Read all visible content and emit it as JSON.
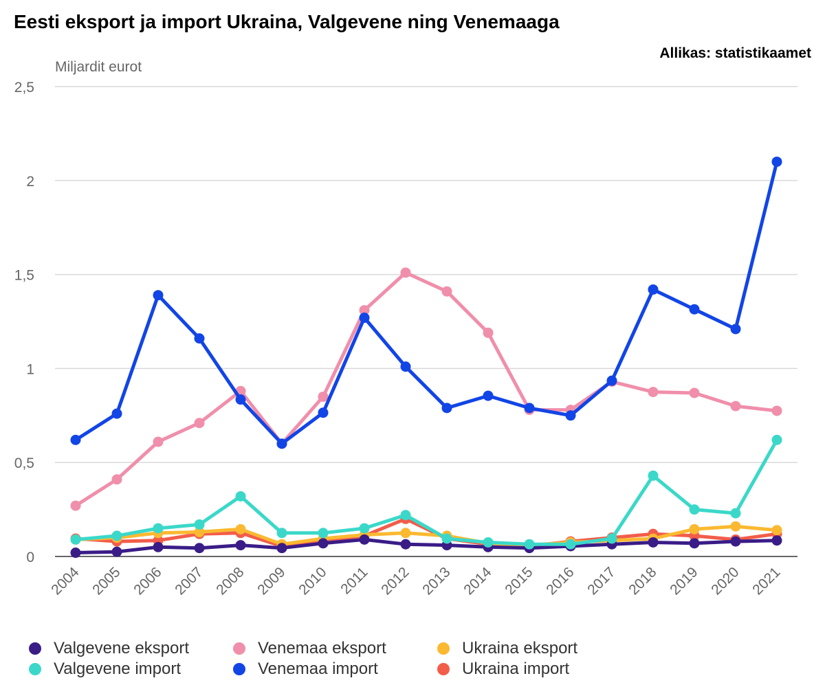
{
  "chart_data": {
    "type": "line",
    "title": "Eesti eksport ja import Ukraina, Valgevene ning Venemaaga",
    "source": "Allikas: statistikaamet",
    "ylabel": "Miljardit eurot",
    "xlabel": "",
    "ylim": [
      0,
      2.5
    ],
    "yticks": [
      0,
      0.5,
      1,
      1.5,
      2,
      2.5
    ],
    "ytick_labels": [
      "0",
      "0,5",
      "1",
      "1,5",
      "2",
      "2,5"
    ],
    "grid": true,
    "legend_position": "bottom",
    "categories": [
      "2004",
      "2005",
      "2006",
      "2007",
      "2008",
      "2009",
      "2010",
      "2011",
      "2012",
      "2013",
      "2014",
      "2015",
      "2016",
      "2017",
      "2018",
      "2019",
      "2020",
      "2021"
    ],
    "series": [
      {
        "name": "Valgevene eksport",
        "color": "#3a1c87",
        "values": [
          0.02,
          0.025,
          0.05,
          0.045,
          0.06,
          0.045,
          0.07,
          0.09,
          0.065,
          0.06,
          0.05,
          0.045,
          0.055,
          0.065,
          0.075,
          0.07,
          0.08,
          0.085
        ]
      },
      {
        "name": "Valgevene import",
        "color": "#3bd8c9",
        "values": [
          0.09,
          0.11,
          0.15,
          0.17,
          0.32,
          0.125,
          0.125,
          0.15,
          0.22,
          0.095,
          0.075,
          0.065,
          0.065,
          0.095,
          0.43,
          0.25,
          0.23,
          0.62
        ]
      },
      {
        "name": "Venemaa eksport",
        "color": "#f08fab",
        "values": [
          0.27,
          0.41,
          0.61,
          0.71,
          0.88,
          0.6,
          0.85,
          1.31,
          1.51,
          1.41,
          1.19,
          0.78,
          0.78,
          0.93,
          0.875,
          0.87,
          0.8,
          0.775
        ]
      },
      {
        "name": "Venemaa import",
        "color": "#1245e6",
        "values": [
          0.62,
          0.76,
          1.39,
          1.16,
          0.835,
          0.6,
          0.765,
          1.27,
          1.01,
          0.79,
          0.855,
          0.79,
          0.75,
          0.935,
          1.42,
          1.315,
          1.21,
          2.1
        ]
      },
      {
        "name": "Ukraina eksport",
        "color": "#fbb931",
        "values": [
          0.09,
          0.1,
          0.125,
          0.13,
          0.145,
          0.065,
          0.095,
          0.115,
          0.125,
          0.11,
          0.07,
          0.06,
          0.075,
          0.085,
          0.095,
          0.145,
          0.16,
          0.14
        ]
      },
      {
        "name": "Ukraina import",
        "color": "#f25d4a",
        "values": [
          0.095,
          0.08,
          0.085,
          0.12,
          0.125,
          0.055,
          0.08,
          0.11,
          0.2,
          0.095,
          0.065,
          0.055,
          0.08,
          0.1,
          0.12,
          0.11,
          0.09,
          0.12
        ]
      }
    ]
  }
}
